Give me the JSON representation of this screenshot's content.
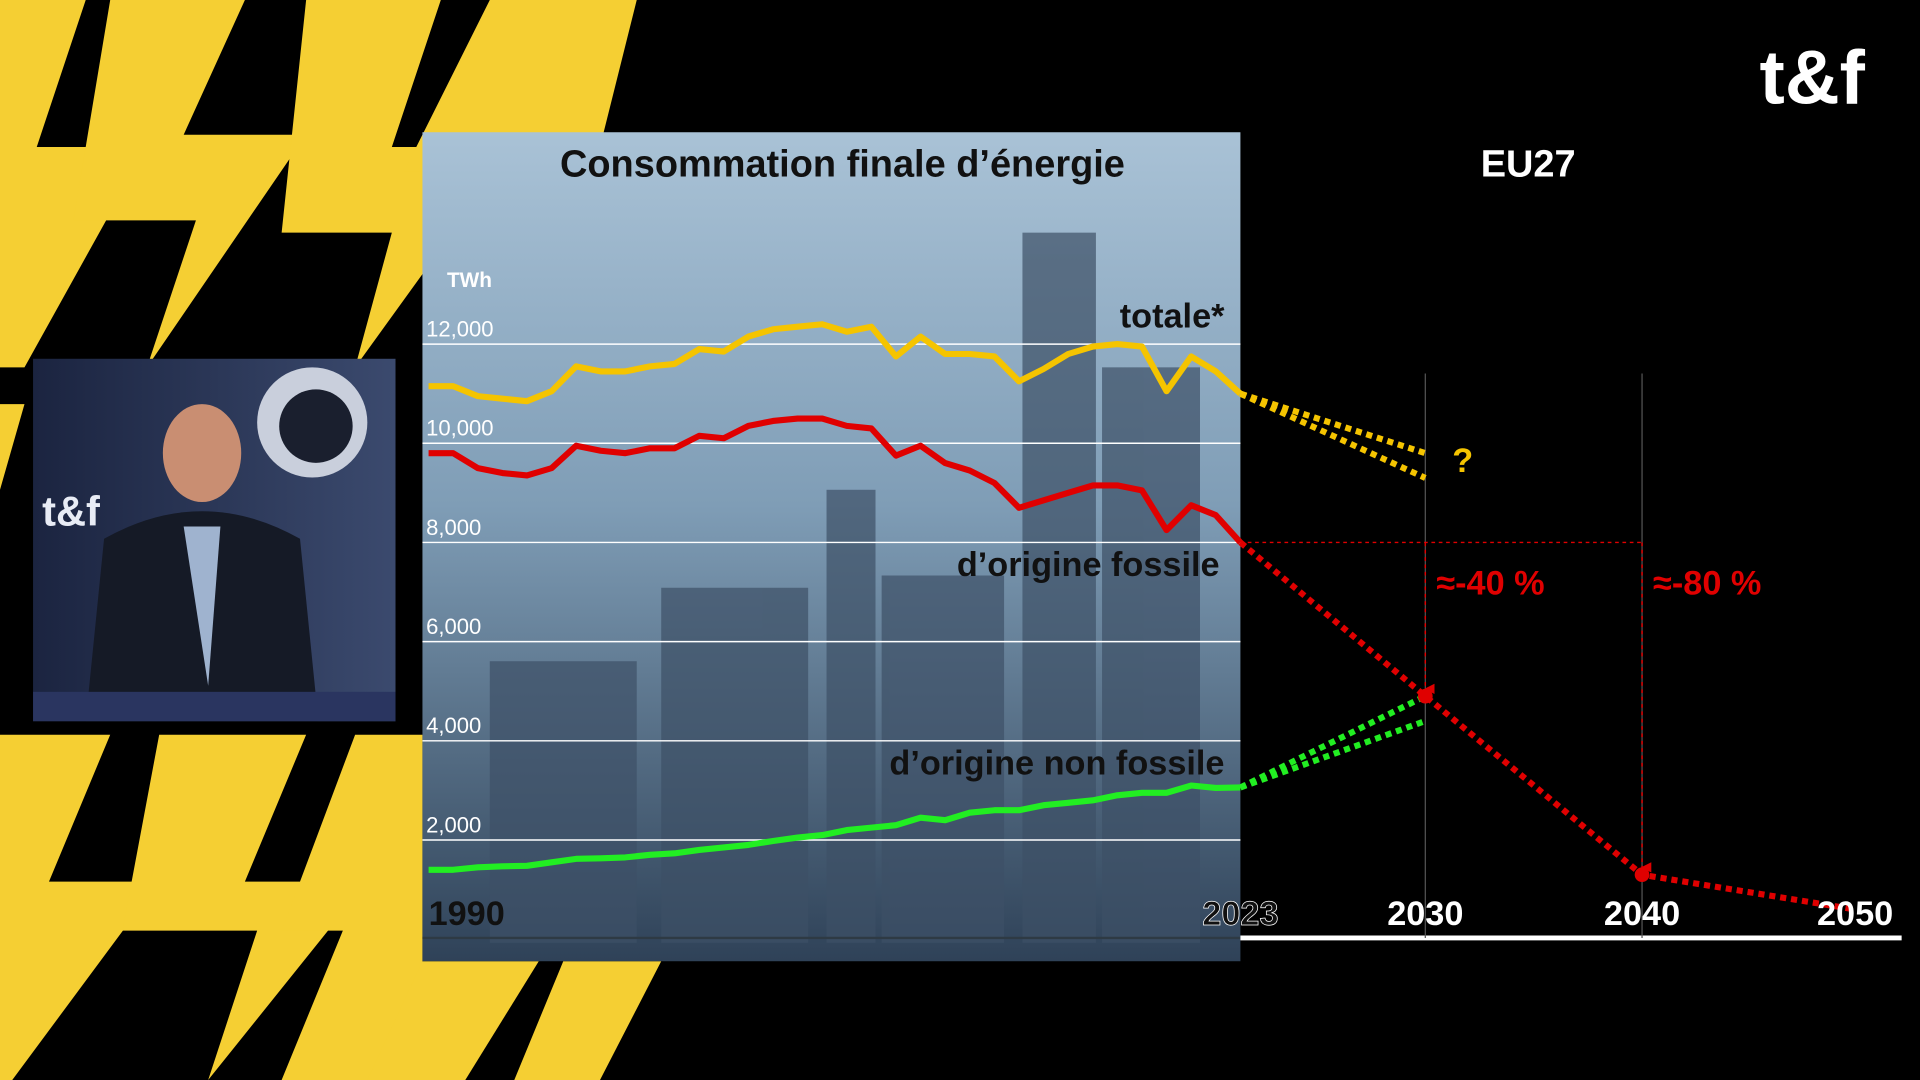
{
  "logo": "t&f",
  "chart_data": {
    "type": "line",
    "title": "Consommation finale d’énergie",
    "subtitle": "EU27",
    "y_label": "TWh",
    "x": [
      1990,
      1991,
      1992,
      1993,
      1994,
      1995,
      1996,
      1997,
      1998,
      1999,
      2000,
      2001,
      2002,
      2003,
      2004,
      2005,
      2006,
      2007,
      2008,
      2009,
      2010,
      2011,
      2012,
      2013,
      2014,
      2015,
      2016,
      2017,
      2018,
      2019,
      2020,
      2021,
      2022,
      2023
    ],
    "series": [
      {
        "name": "totale*",
        "color": "#f5c400",
        "values": [
          11150,
          11150,
          10950,
          10900,
          10850,
          11050,
          11550,
          11450,
          11450,
          11550,
          11600,
          11900,
          11850,
          12150,
          12300,
          12350,
          12400,
          12250,
          12350,
          11750,
          12150,
          11800,
          11800,
          11750,
          11250,
          11500,
          11800,
          11950,
          12000,
          11950,
          11050,
          11750,
          11450,
          11000
        ]
      },
      {
        "name": "d’origine fossile",
        "color": "#e00000",
        "values": [
          9800,
          9800,
          9500,
          9400,
          9350,
          9500,
          9950,
          9850,
          9800,
          9900,
          9900,
          10150,
          10100,
          10350,
          10450,
          10500,
          10500,
          10350,
          10300,
          9750,
          9950,
          9600,
          9450,
          9200,
          8700,
          8850,
          9000,
          9150,
          9150,
          9050,
          8250,
          8750,
          8550,
          8000
        ]
      },
      {
        "name": "d’origine non fossile",
        "color": "#22ee22",
        "values": [
          1400,
          1400,
          1450,
          1470,
          1480,
          1550,
          1620,
          1630,
          1650,
          1700,
          1730,
          1800,
          1850,
          1900,
          1980,
          2050,
          2100,
          2200,
          2250,
          2300,
          2450,
          2400,
          2550,
          2600,
          2600,
          2700,
          2750,
          2800,
          2900,
          2950,
          2950,
          3100,
          3050,
          3060
        ]
      }
    ],
    "projections": [
      {
        "color": "#f5c400",
        "x": [
          2023,
          2030
        ],
        "values": [
          11000,
          9800
        ]
      },
      {
        "color": "#f5c400",
        "x": [
          2023,
          2030
        ],
        "values": [
          11000,
          9300
        ]
      },
      {
        "color": "#e00000",
        "x": [
          2023,
          2030,
          2040,
          2050
        ],
        "values": [
          8000,
          4900,
          1300,
          600
        ]
      },
      {
        "color": "#22ee22",
        "x": [
          2023,
          2030
        ],
        "values": [
          3060,
          4900
        ]
      },
      {
        "color": "#22ee22",
        "x": [
          2023,
          2030
        ],
        "values": [
          3060,
          4400
        ]
      }
    ],
    "annotations": [
      "?",
      "≈-40 %",
      "≈-80 %"
    ],
    "ylim": [
      0,
      13000
    ],
    "yticks": [
      {
        "value": 2000,
        "label": "2,000"
      },
      {
        "value": 4000,
        "label": "4,000"
      },
      {
        "value": 6000,
        "label": "6,000"
      },
      {
        "value": 8000,
        "label": "8,000"
      },
      {
        "value": 10000,
        "label": "10,000"
      },
      {
        "value": 12000,
        "label": "12,000"
      }
    ],
    "xticks": [
      1990,
      2023,
      2030,
      2040,
      2050
    ],
    "grid": true
  }
}
